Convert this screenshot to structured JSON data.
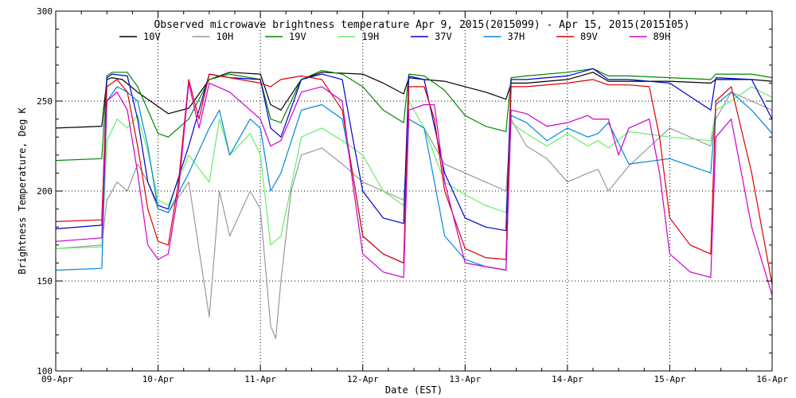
{
  "chart_data": {
    "type": "line",
    "title": "Observed microwave brightness temperature Apr  9, 2015(2015099) - Apr 15, 2015(2015105)",
    "xlabel": "Date (EST)",
    "ylabel": "Brightness Temperature, Deg K",
    "xlim": [
      0,
      7
    ],
    "ylim": [
      100,
      300
    ],
    "grid": true,
    "legend_position": "top",
    "yticks": [
      "100",
      "150",
      "200",
      "250",
      "300"
    ],
    "xticks": [
      "09-Apr",
      "10-Apr",
      "11-Apr",
      "12-Apr",
      "13-Apr",
      "14-Apr",
      "15-Apr",
      "16-Apr"
    ],
    "x_unit": "days since 09-Apr 00:00 EST",
    "series": [
      {
        "name": "10V",
        "color": "#000000",
        "x": [
          0,
          0.45,
          0.5,
          0.55,
          0.65,
          0.8,
          1.0,
          1.1,
          1.3,
          1.5,
          1.7,
          2.0,
          2.1,
          2.2,
          2.4,
          2.6,
          3.0,
          3.2,
          3.4,
          3.45,
          3.6,
          3.8,
          4.0,
          4.2,
          4.4,
          4.45,
          4.6,
          5.0,
          5.25,
          5.4,
          5.6,
          6.0,
          6.4,
          6.45,
          6.8,
          7.0
        ],
        "y": [
          235,
          236,
          262,
          263,
          262,
          255,
          247,
          243,
          246,
          262,
          266,
          265,
          248,
          245,
          262,
          266,
          265,
          260,
          254,
          263,
          262,
          261,
          258,
          255,
          251,
          260,
          260,
          262,
          266,
          261,
          261,
          261,
          260,
          262,
          262,
          261
        ]
      },
      {
        "name": "10H",
        "color": "#999999",
        "x": [
          0,
          0.45,
          0.5,
          0.6,
          0.7,
          0.8,
          0.9,
          1.0,
          1.1,
          1.3,
          1.5,
          1.6,
          1.7,
          1.9,
          2.0,
          2.1,
          2.15,
          2.2,
          2.3,
          2.4,
          2.6,
          2.8,
          3.0,
          3.2,
          3.4,
          3.45,
          3.6,
          3.8,
          4.0,
          4.2,
          4.4,
          4.45,
          4.6,
          4.8,
          5.0,
          5.2,
          5.3,
          5.4,
          5.6,
          6.0,
          6.4,
          6.45,
          6.6,
          6.8,
          7.0
        ],
        "y": [
          168,
          170,
          195,
          205,
          200,
          215,
          205,
          190,
          188,
          205,
          130,
          200,
          175,
          200,
          190,
          125,
          118,
          150,
          200,
          220,
          224,
          215,
          205,
          200,
          195,
          240,
          235,
          215,
          210,
          205,
          200,
          240,
          225,
          218,
          205,
          210,
          212,
          200,
          214,
          235,
          225,
          240,
          255,
          250,
          245
        ]
      },
      {
        "name": "19V",
        "color": "#008800",
        "x": [
          0,
          0.45,
          0.5,
          0.55,
          0.7,
          0.8,
          1.0,
          1.1,
          1.3,
          1.5,
          1.7,
          2.0,
          2.1,
          2.2,
          2.4,
          2.6,
          2.8,
          3.0,
          3.2,
          3.4,
          3.45,
          3.6,
          3.8,
          4.0,
          4.2,
          4.4,
          4.45,
          4.6,
          5.0,
          5.25,
          5.4,
          5.6,
          6.0,
          6.4,
          6.45,
          6.8,
          7.0
        ],
        "y": [
          217,
          218,
          264,
          266,
          266,
          258,
          232,
          230,
          240,
          262,
          265,
          262,
          240,
          238,
          262,
          267,
          265,
          258,
          245,
          238,
          265,
          264,
          256,
          242,
          236,
          233,
          263,
          264,
          266,
          268,
          264,
          264,
          263,
          262,
          265,
          265,
          263
        ]
      },
      {
        "name": "19H",
        "color": "#66ee66",
        "x": [
          0,
          0.45,
          0.5,
          0.6,
          0.7,
          0.8,
          0.9,
          1.0,
          1.1,
          1.3,
          1.5,
          1.6,
          1.7,
          1.9,
          2.0,
          2.1,
          2.2,
          2.4,
          2.6,
          2.8,
          3.0,
          3.2,
          3.4,
          3.45,
          3.6,
          3.8,
          4.0,
          4.2,
          4.4,
          4.45,
          4.6,
          4.8,
          5.0,
          5.2,
          5.3,
          5.4,
          5.6,
          6.0,
          6.4,
          6.45,
          6.6,
          6.8,
          7.0
        ],
        "y": [
          168,
          169,
          228,
          240,
          235,
          242,
          222,
          195,
          192,
          220,
          205,
          240,
          220,
          232,
          220,
          170,
          175,
          230,
          235,
          228,
          220,
          200,
          192,
          250,
          235,
          205,
          198,
          192,
          188,
          238,
          232,
          225,
          232,
          225,
          228,
          224,
          233,
          230,
          228,
          245,
          250,
          258,
          252
        ]
      },
      {
        "name": "37V",
        "color": "#0000cc",
        "x": [
          0,
          0.45,
          0.5,
          0.55,
          0.7,
          0.8,
          0.9,
          1.0,
          1.1,
          1.3,
          1.5,
          1.7,
          2.0,
          2.1,
          2.2,
          2.4,
          2.6,
          2.8,
          2.9,
          3.0,
          3.2,
          3.4,
          3.45,
          3.6,
          3.8,
          4.0,
          4.2,
          4.4,
          4.45,
          4.6,
          5.0,
          5.25,
          5.4,
          5.6,
          6.0,
          6.4,
          6.45,
          6.8,
          7.0
        ],
        "y": [
          179,
          181,
          263,
          265,
          264,
          240,
          205,
          192,
          190,
          225,
          265,
          263,
          262,
          235,
          230,
          262,
          265,
          262,
          230,
          200,
          185,
          182,
          264,
          262,
          210,
          185,
          180,
          178,
          262,
          262,
          264,
          268,
          262,
          262,
          260,
          245,
          263,
          262,
          240
        ]
      },
      {
        "name": "37H",
        "color": "#0088dd",
        "x": [
          0,
          0.45,
          0.5,
          0.6,
          0.7,
          0.8,
          0.9,
          1.0,
          1.1,
          1.3,
          1.5,
          1.6,
          1.7,
          1.9,
          2.0,
          2.1,
          2.2,
          2.4,
          2.6,
          2.8,
          2.9,
          3.0,
          3.2,
          3.4,
          3.45,
          3.6,
          3.8,
          4.0,
          4.2,
          4.4,
          4.45,
          4.6,
          4.8,
          5.0,
          5.2,
          5.3,
          5.4,
          5.6,
          6.0,
          6.4,
          6.45,
          6.6,
          6.8,
          7.0
        ],
        "y": [
          156,
          157,
          250,
          258,
          255,
          250,
          225,
          190,
          188,
          210,
          235,
          245,
          220,
          240,
          235,
          200,
          210,
          245,
          248,
          240,
          210,
          175,
          165,
          160,
          240,
          235,
          175,
          162,
          158,
          156,
          242,
          238,
          228,
          235,
          230,
          232,
          238,
          215,
          218,
          210,
          248,
          255,
          245,
          232
        ]
      },
      {
        "name": "89V",
        "color": "#dd0000",
        "x": [
          0,
          0.45,
          0.5,
          0.6,
          0.7,
          0.8,
          0.9,
          1.0,
          1.1,
          1.2,
          1.3,
          1.4,
          1.5,
          1.7,
          2.0,
          2.1,
          2.2,
          2.4,
          2.6,
          2.8,
          2.9,
          3.0,
          3.2,
          3.4,
          3.45,
          3.6,
          3.7,
          3.8,
          4.0,
          4.2,
          4.4,
          4.45,
          4.6,
          5.0,
          5.25,
          5.4,
          5.6,
          5.8,
          5.9,
          6.0,
          6.2,
          6.4,
          6.45,
          6.6,
          6.8,
          7.0
        ],
        "y": [
          183,
          184,
          258,
          262,
          255,
          225,
          190,
          172,
          170,
          205,
          262,
          240,
          265,
          263,
          260,
          258,
          262,
          264,
          262,
          245,
          210,
          175,
          165,
          160,
          258,
          258,
          240,
          200,
          168,
          163,
          162,
          258,
          258,
          260,
          262,
          259,
          259,
          258,
          230,
          185,
          170,
          165,
          250,
          258,
          210,
          148
        ]
      },
      {
        "name": "89H",
        "color": "#cc00cc",
        "x": [
          0,
          0.45,
          0.5,
          0.6,
          0.7,
          0.8,
          0.9,
          1.0,
          1.1,
          1.2,
          1.3,
          1.4,
          1.5,
          1.7,
          1.9,
          2.0,
          2.1,
          2.2,
          2.4,
          2.6,
          2.8,
          2.9,
          3.0,
          3.2,
          3.4,
          3.45,
          3.6,
          3.7,
          3.8,
          4.0,
          4.2,
          4.4,
          4.45,
          4.6,
          4.8,
          5.0,
          5.2,
          5.25,
          5.4,
          5.5,
          5.6,
          5.8,
          5.9,
          6.0,
          6.2,
          6.4,
          6.45,
          6.6,
          6.8,
          7.0
        ],
        "y": [
          172,
          174,
          250,
          255,
          245,
          210,
          170,
          162,
          165,
          200,
          260,
          235,
          260,
          255,
          245,
          240,
          225,
          228,
          255,
          258,
          250,
          205,
          165,
          155,
          152,
          245,
          248,
          248,
          205,
          160,
          158,
          156,
          245,
          243,
          236,
          238,
          242,
          240,
          240,
          220,
          235,
          240,
          210,
          165,
          155,
          152,
          230,
          240,
          180,
          142
        ]
      }
    ]
  }
}
